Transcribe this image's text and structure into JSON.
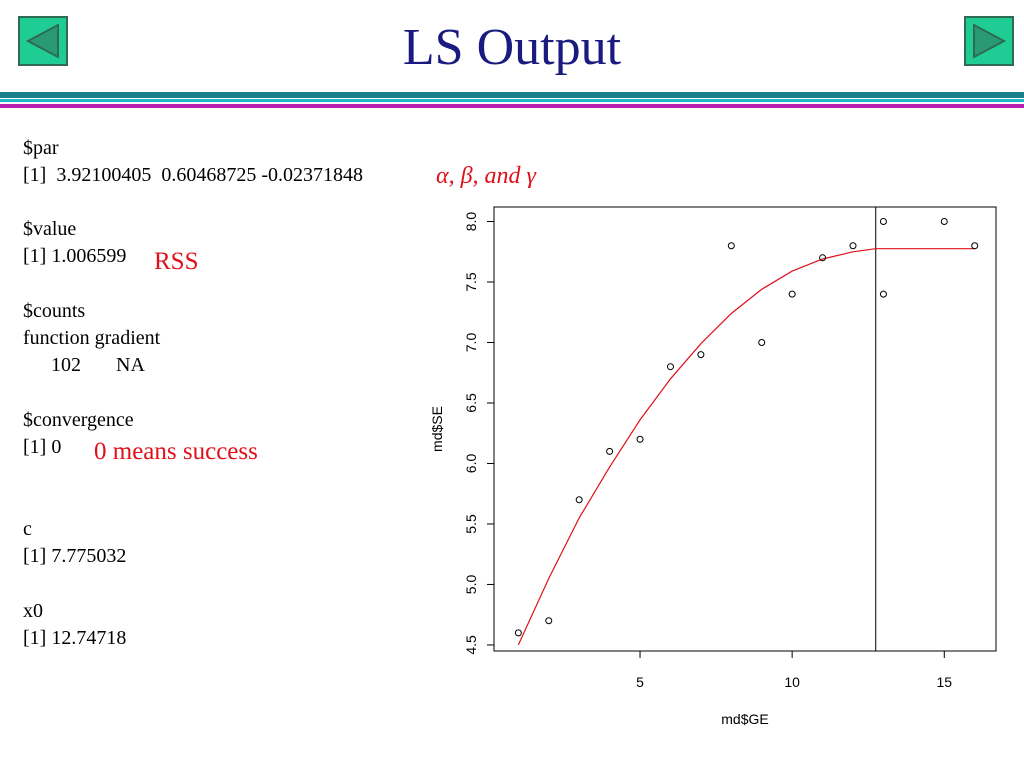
{
  "slide": {
    "title": "LS Output",
    "nav": {
      "prev_icon": "triangle-left-icon",
      "next_icon": "triangle-right-icon"
    },
    "colors": {
      "title": "#1a1a80",
      "annotation": "#e0101a",
      "fit_line": "#e0101a",
      "button_fill": "#1fcc94"
    }
  },
  "output": {
    "par_header": "$par",
    "par_values": "[1]  3.92100405  0.60468725 -0.02371848",
    "value_header": "$value",
    "value_line": "[1] 1.006599",
    "counts_header": "$counts",
    "counts_labels": "function gradient",
    "counts_values": "102       NA",
    "convergence_header": "$convergence",
    "convergence_line": "[1] 0",
    "c_header": "c",
    "c_line": "[1] 7.775032",
    "x0_header": "x0",
    "x0_line": "[1] 12.74718"
  },
  "annotations": {
    "params_label": "α, β, and γ",
    "rss_label": "RSS",
    "convergence_note": "0 means success"
  },
  "chart_data": {
    "type": "scatter",
    "xlabel": "md$GE",
    "ylabel": "md$SE",
    "xlim": [
      0.2,
      16.7
    ],
    "ylim": [
      4.45,
      8.12
    ],
    "xticks": [
      5,
      10,
      15
    ],
    "yticks": [
      4.5,
      5.0,
      5.5,
      6.0,
      6.5,
      7.0,
      7.5,
      8.0
    ],
    "points": [
      [
        1,
        4.6
      ],
      [
        2,
        4.7
      ],
      [
        3,
        5.7
      ],
      [
        4,
        6.1
      ],
      [
        5,
        6.2
      ],
      [
        6,
        6.8
      ],
      [
        7,
        6.9
      ],
      [
        8,
        7.8
      ],
      [
        9,
        7.0
      ],
      [
        10,
        7.4
      ],
      [
        11,
        7.7
      ],
      [
        12,
        7.8
      ],
      [
        13,
        8.0
      ],
      [
        13,
        7.4
      ],
      [
        15,
        8.0
      ],
      [
        16,
        7.8
      ]
    ],
    "fit_line": [
      [
        1,
        4.5
      ],
      [
        2,
        5.05
      ],
      [
        3,
        5.55
      ],
      [
        4,
        5.97
      ],
      [
        5,
        6.36
      ],
      [
        6,
        6.7
      ],
      [
        7,
        6.99
      ],
      [
        8,
        7.24
      ],
      [
        9,
        7.44
      ],
      [
        10,
        7.59
      ],
      [
        11,
        7.69
      ],
      [
        12,
        7.75
      ],
      [
        12.74718,
        7.775032
      ],
      [
        16,
        7.775032
      ]
    ],
    "vline_x": 12.74718,
    "grid": false
  }
}
